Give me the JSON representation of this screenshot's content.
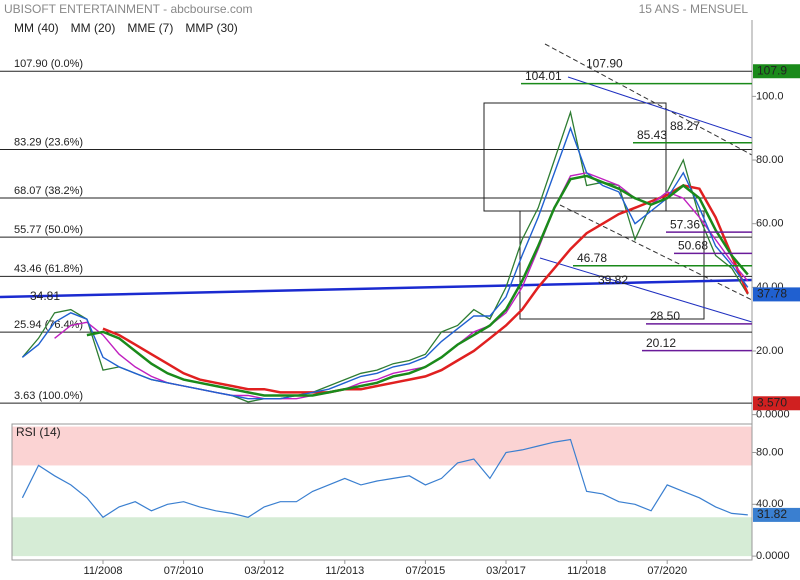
{
  "header": {
    "title": "UBISOFT ENTERTAINMENT - abcbourse.com",
    "period": "15 ANS - MENSUEL"
  },
  "chart_data": {
    "type": "line",
    "x": [
      "03/2007",
      "07/2007",
      "11/2007",
      "03/2008",
      "07/2008",
      "11/2008",
      "03/2009",
      "07/2009",
      "11/2009",
      "03/2010",
      "07/2010",
      "11/2010",
      "03/2011",
      "07/2011",
      "11/2011",
      "03/2012",
      "07/2012",
      "11/2012",
      "03/2013",
      "07/2013",
      "11/2013",
      "03/2014",
      "07/2014",
      "11/2014",
      "03/2015",
      "07/2015",
      "11/2015",
      "03/2016",
      "07/2016",
      "11/2016",
      "03/2017",
      "07/2017",
      "11/2017",
      "03/2018",
      "07/2018",
      "11/2018",
      "03/2019",
      "07/2019",
      "11/2019",
      "03/2020",
      "07/2020",
      "11/2020",
      "03/2021",
      "07/2021",
      "11/2021",
      "03/2022"
    ],
    "xticks": [
      "11/2008",
      "07/2010",
      "03/2012",
      "11/2013",
      "07/2015",
      "03/2017",
      "11/2018",
      "07/2020"
    ],
    "price": {
      "color": "#2e7d32",
      "values": [
        18,
        24,
        32,
        33,
        30,
        14,
        15,
        13,
        11,
        10,
        9,
        8,
        7,
        6,
        4,
        5,
        5,
        6,
        7,
        9,
        11,
        13,
        14,
        16,
        17,
        19,
        26,
        28,
        33,
        30,
        40,
        55,
        65,
        80,
        95,
        72,
        73,
        72,
        55,
        66,
        70,
        80,
        62,
        50,
        46,
        37.78
      ]
    },
    "series": [
      {
        "name": "MM (40)",
        "color": "#e02020",
        "values": [
          null,
          null,
          null,
          null,
          null,
          27,
          25,
          22,
          19,
          16,
          13,
          11,
          10,
          9,
          8,
          8,
          7,
          7,
          7,
          7,
          8,
          8,
          9,
          10,
          11,
          12,
          14,
          17,
          20,
          24,
          28,
          33,
          40,
          46,
          52,
          57,
          60,
          63,
          65,
          67,
          69,
          72,
          71,
          62,
          50,
          38
        ]
      },
      {
        "name": "MM (20)",
        "color": "#c020c0",
        "values": [
          null,
          null,
          24,
          28,
          29,
          25,
          19,
          15,
          12,
          10,
          9,
          8,
          7,
          6,
          6,
          5,
          5,
          5,
          6,
          7,
          8,
          10,
          11,
          13,
          14,
          15,
          18,
          22,
          26,
          28,
          32,
          40,
          52,
          65,
          75,
          76,
          74,
          72,
          68,
          66,
          70,
          68,
          62,
          55,
          48,
          42
        ]
      },
      {
        "name": "MME (7)",
        "color": "#2060d0",
        "values": [
          18,
          22,
          29,
          32,
          30,
          18,
          15,
          13,
          11,
          10,
          9,
          8,
          7,
          6,
          5,
          5,
          5,
          6,
          7,
          8,
          10,
          12,
          13,
          15,
          16,
          18,
          23,
          27,
          31,
          31,
          37,
          50,
          62,
          76,
          90,
          76,
          72,
          70,
          60,
          64,
          68,
          76,
          65,
          53,
          47,
          40
        ]
      },
      {
        "name": "MMP (30)",
        "color": "#1a8a1a",
        "values": [
          null,
          null,
          null,
          null,
          25,
          26,
          24,
          20,
          16,
          13,
          11,
          10,
          9,
          8,
          7,
          6,
          6,
          6,
          6,
          7,
          8,
          9,
          10,
          12,
          13,
          15,
          18,
          22,
          25,
          28,
          33,
          42,
          53,
          65,
          74,
          75,
          73,
          71,
          68,
          66,
          68,
          72,
          68,
          58,
          50,
          44
        ]
      }
    ],
    "ylim": [
      -2,
      124
    ],
    "yticks": [
      {
        "value": 100,
        "label": "100.0"
      },
      {
        "value": 80,
        "label": "80.00"
      },
      {
        "value": 60,
        "label": "60.00"
      },
      {
        "value": 40,
        "label": "40.00"
      },
      {
        "value": 20,
        "label": "20.00"
      },
      {
        "value": 0,
        "label": "0.0000"
      }
    ],
    "fibonacci": [
      {
        "value": 107.9,
        "label": "107.90 (0.0%)"
      },
      {
        "value": 83.29,
        "label": "83.29 (23.6%)"
      },
      {
        "value": 68.07,
        "label": "68.07 (38.2%)"
      },
      {
        "value": 55.77,
        "label": "55.77 (50.0%)"
      },
      {
        "value": 43.46,
        "label": "43.46 (61.8%)"
      },
      {
        "value": 25.94,
        "label": "25.94 (76.4%)"
      },
      {
        "value": 3.63,
        "label": "3.63 (100.0%)"
      }
    ],
    "annotations": [
      {
        "value": 107.9,
        "label": "107.90",
        "color": "#d02020"
      },
      {
        "value": 104.01,
        "label": "104.01",
        "color": "#1a8a1a"
      },
      {
        "value": 85.43,
        "label": "85.43",
        "color": "#1a8a1a"
      },
      {
        "value": 88.27,
        "label": "88.27",
        "color": "#d02020"
      },
      {
        "value": 57.36,
        "label": "57.36",
        "color": "#6a1b9a"
      },
      {
        "value": 50.68,
        "label": "50.68",
        "color": "#6a1b9a"
      },
      {
        "value": 46.78,
        "label": "46.78",
        "color": "#1a8a1a"
      },
      {
        "value": 39.82,
        "label": "39.82",
        "color": "#d02020"
      },
      {
        "value": 28.5,
        "label": "28.50",
        "color": "#6a1b9a"
      },
      {
        "value": 20.12,
        "label": "20.12",
        "color": "#6a1b9a"
      },
      {
        "value": 34.81,
        "label": "34.81",
        "color": "#222222"
      }
    ],
    "price_tags": [
      {
        "value": 107.9,
        "label": "107.9",
        "color": "#1a8a1a"
      },
      {
        "value": 3.57,
        "label": "3.570",
        "color": "#d02020"
      }
    ],
    "last_tag_color": "#2060d0",
    "rsi": {
      "title": "RSI (14)",
      "color": "#3a7fd0",
      "values": [
        45,
        70,
        62,
        55,
        45,
        30,
        38,
        42,
        35,
        40,
        42,
        38,
        35,
        33,
        30,
        38,
        42,
        42,
        50,
        55,
        60,
        55,
        58,
        60,
        62,
        55,
        60,
        72,
        75,
        60,
        80,
        82,
        85,
        88,
        90,
        50,
        48,
        42,
        40,
        35,
        55,
        50,
        45,
        38,
        33,
        31.82
      ],
      "ylim": [
        -3,
        102
      ],
      "yticks": [
        {
          "value": 80,
          "label": "80.00"
        },
        {
          "value": 40,
          "label": "40.00"
        },
        {
          "value": 0,
          "label": "0.0000"
        }
      ],
      "overbought": 70,
      "oversold": 30
    }
  }
}
